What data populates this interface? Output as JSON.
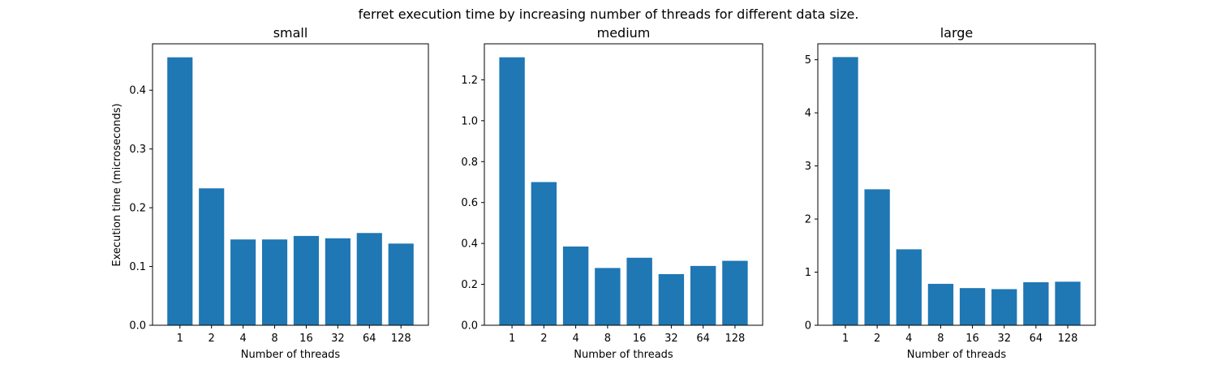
{
  "figure": {
    "suptitle": "ferret execution time by increasing number of threads for different data size."
  },
  "colors": {
    "bar": "#1f77b4",
    "axes": "#000000",
    "background": "#ffffff"
  },
  "chart_data": [
    {
      "type": "bar",
      "title": "small",
      "xlabel": "Number of threads",
      "ylabel": "Execution time (microseconds)",
      "categories": [
        "1",
        "2",
        "4",
        "8",
        "16",
        "32",
        "64",
        "128"
      ],
      "values": [
        0.456,
        0.233,
        0.146,
        0.146,
        0.152,
        0.148,
        0.157,
        0.139
      ],
      "ylim": [
        0,
        0.479
      ],
      "yticks": [
        0.0,
        0.1,
        0.2,
        0.3,
        0.4
      ],
      "ytick_labels": [
        "0.0",
        "0.1",
        "0.2",
        "0.3",
        "0.4"
      ],
      "grid": false,
      "legend": "none"
    },
    {
      "type": "bar",
      "title": "medium",
      "xlabel": "Number of threads",
      "ylabel": "",
      "categories": [
        "1",
        "2",
        "4",
        "8",
        "16",
        "32",
        "64",
        "128"
      ],
      "values": [
        1.31,
        0.7,
        0.385,
        0.28,
        0.33,
        0.25,
        0.29,
        0.315
      ],
      "ylim": [
        0,
        1.376
      ],
      "yticks": [
        0.0,
        0.2,
        0.4,
        0.6,
        0.8,
        1.0,
        1.2
      ],
      "ytick_labels": [
        "0.0",
        "0.2",
        "0.4",
        "0.6",
        "0.8",
        "1.0",
        "1.2"
      ],
      "grid": false,
      "legend": "none"
    },
    {
      "type": "bar",
      "title": "large",
      "xlabel": "Number of threads",
      "ylabel": "",
      "categories": [
        "1",
        "2",
        "4",
        "8",
        "16",
        "32",
        "64",
        "128"
      ],
      "values": [
        5.05,
        2.56,
        1.43,
        0.78,
        0.7,
        0.68,
        0.81,
        0.82
      ],
      "ylim": [
        0,
        5.3
      ],
      "yticks": [
        0,
        1,
        2,
        3,
        4,
        5
      ],
      "ytick_labels": [
        "0",
        "1",
        "2",
        "3",
        "4",
        "5"
      ],
      "grid": false,
      "legend": "none"
    }
  ]
}
